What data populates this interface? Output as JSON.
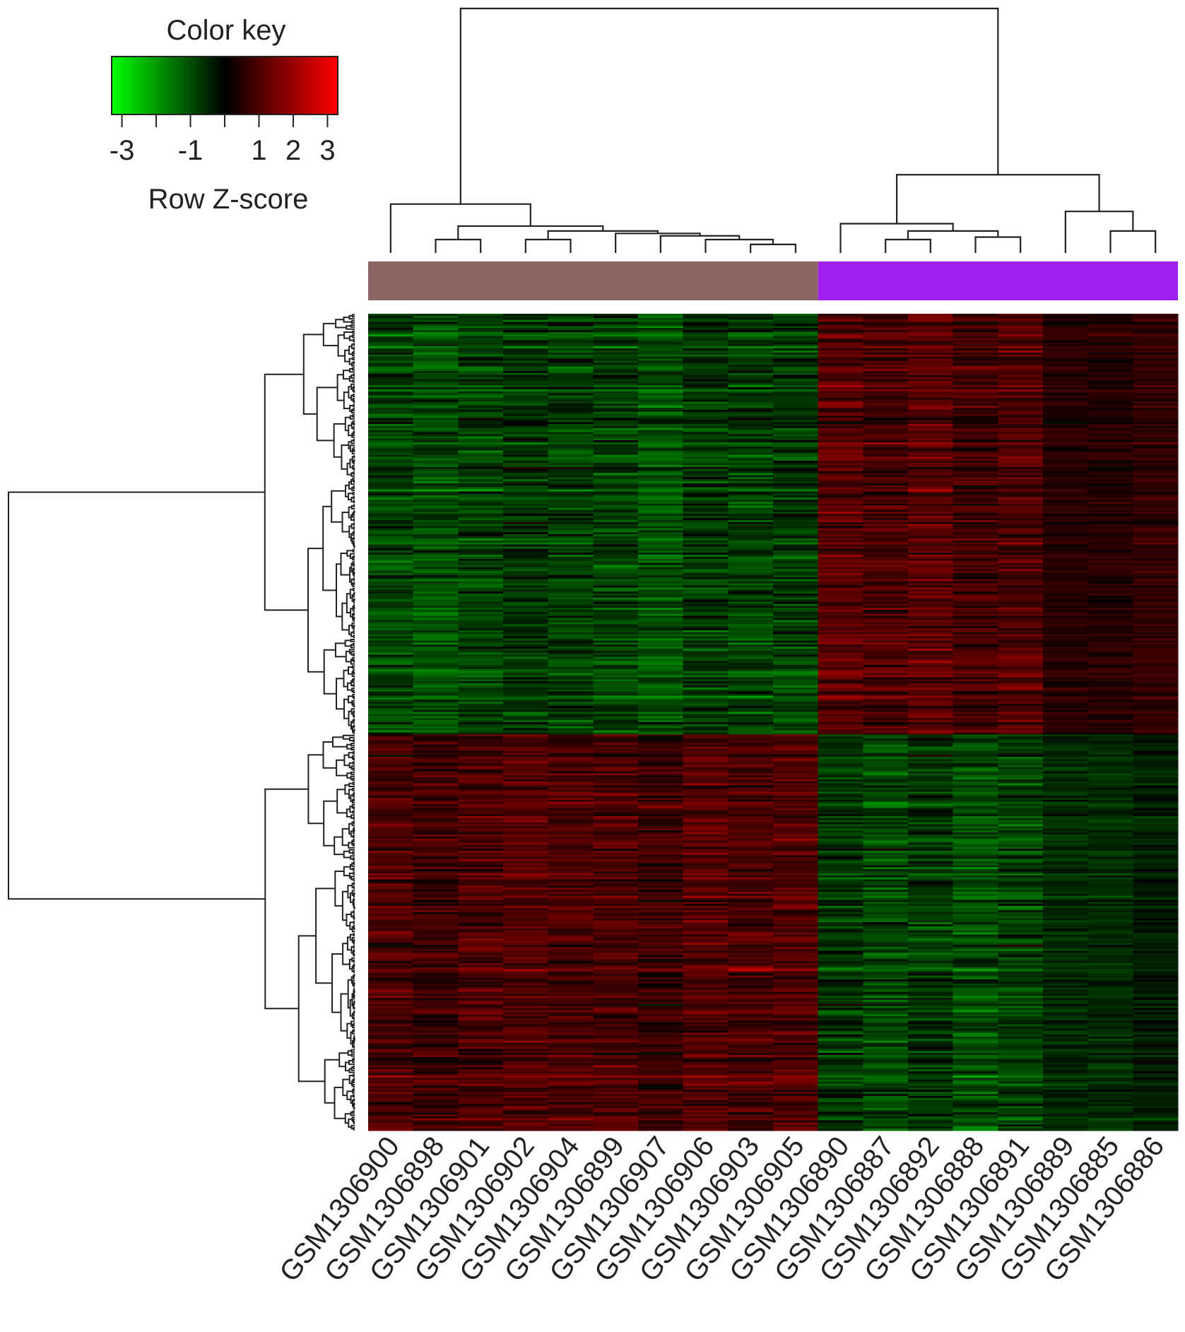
{
  "chart_data": {
    "type": "heatmap",
    "title": "",
    "color_key": {
      "title": "Color key",
      "label": "Row Z-score",
      "range": [
        -3.3,
        3.3
      ],
      "tick_labels": [
        {
          "value": -3,
          "label": "-3"
        },
        {
          "value": -2,
          "label": ""
        },
        {
          "value": -1,
          "label": "-1"
        },
        {
          "value": 0,
          "label": ""
        },
        {
          "value": 1,
          "label": "1"
        },
        {
          "value": 2,
          "label": "2"
        },
        {
          "value": 3,
          "label": "3"
        }
      ],
      "low_color": "#00ff00",
      "mid_color": "#000000",
      "high_color": "#ff0000"
    },
    "columns": [
      "GSM1306900",
      "GSM1306898",
      "GSM1306901",
      "GSM1306902",
      "GSM1306904",
      "GSM1306899",
      "GSM1306907",
      "GSM1306906",
      "GSM1306903",
      "GSM1306905",
      "GSM1306890",
      "GSM1306887",
      "GSM1306892",
      "GSM1306888",
      "GSM1306891",
      "GSM1306889",
      "GSM1306885",
      "GSM1306886"
    ],
    "column_groups": [
      {
        "columns": [
          0,
          9
        ],
        "color": "#8b6662"
      },
      {
        "columns": [
          10,
          17
        ],
        "color": "#a020f0"
      }
    ],
    "row_clusters": [
      {
        "fraction": 0.515,
        "block_means": [
          -0.9,
          1.0
        ]
      },
      {
        "fraction": 0.485,
        "block_means": [
          0.9,
          -0.85
        ]
      }
    ],
    "row_count_estimate": 400,
    "grid": false
  }
}
